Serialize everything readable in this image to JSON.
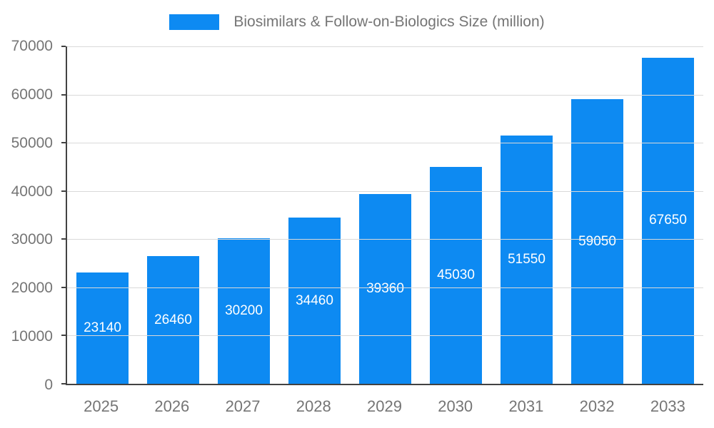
{
  "chart_data": {
    "type": "bar",
    "title": "Biosimilars & Follow-on-Biologics Size (million)",
    "categories": [
      "2025",
      "2026",
      "2027",
      "2028",
      "2029",
      "2030",
      "2031",
      "2032",
      "2033"
    ],
    "values": [
      23140,
      26460,
      30200,
      34460,
      39360,
      45030,
      51550,
      59050,
      67650
    ],
    "ylim": [
      0,
      70000
    ],
    "yticks": [
      0,
      10000,
      20000,
      30000,
      40000,
      50000,
      60000,
      70000
    ],
    "grid": true,
    "legend_position": "top-center",
    "bar_color": "#0d8af2",
    "value_label_color": "#ffffff",
    "axis_text_color": "#757575",
    "gridline_color": "#d9d9d9",
    "axis_line_color": "#424242"
  }
}
